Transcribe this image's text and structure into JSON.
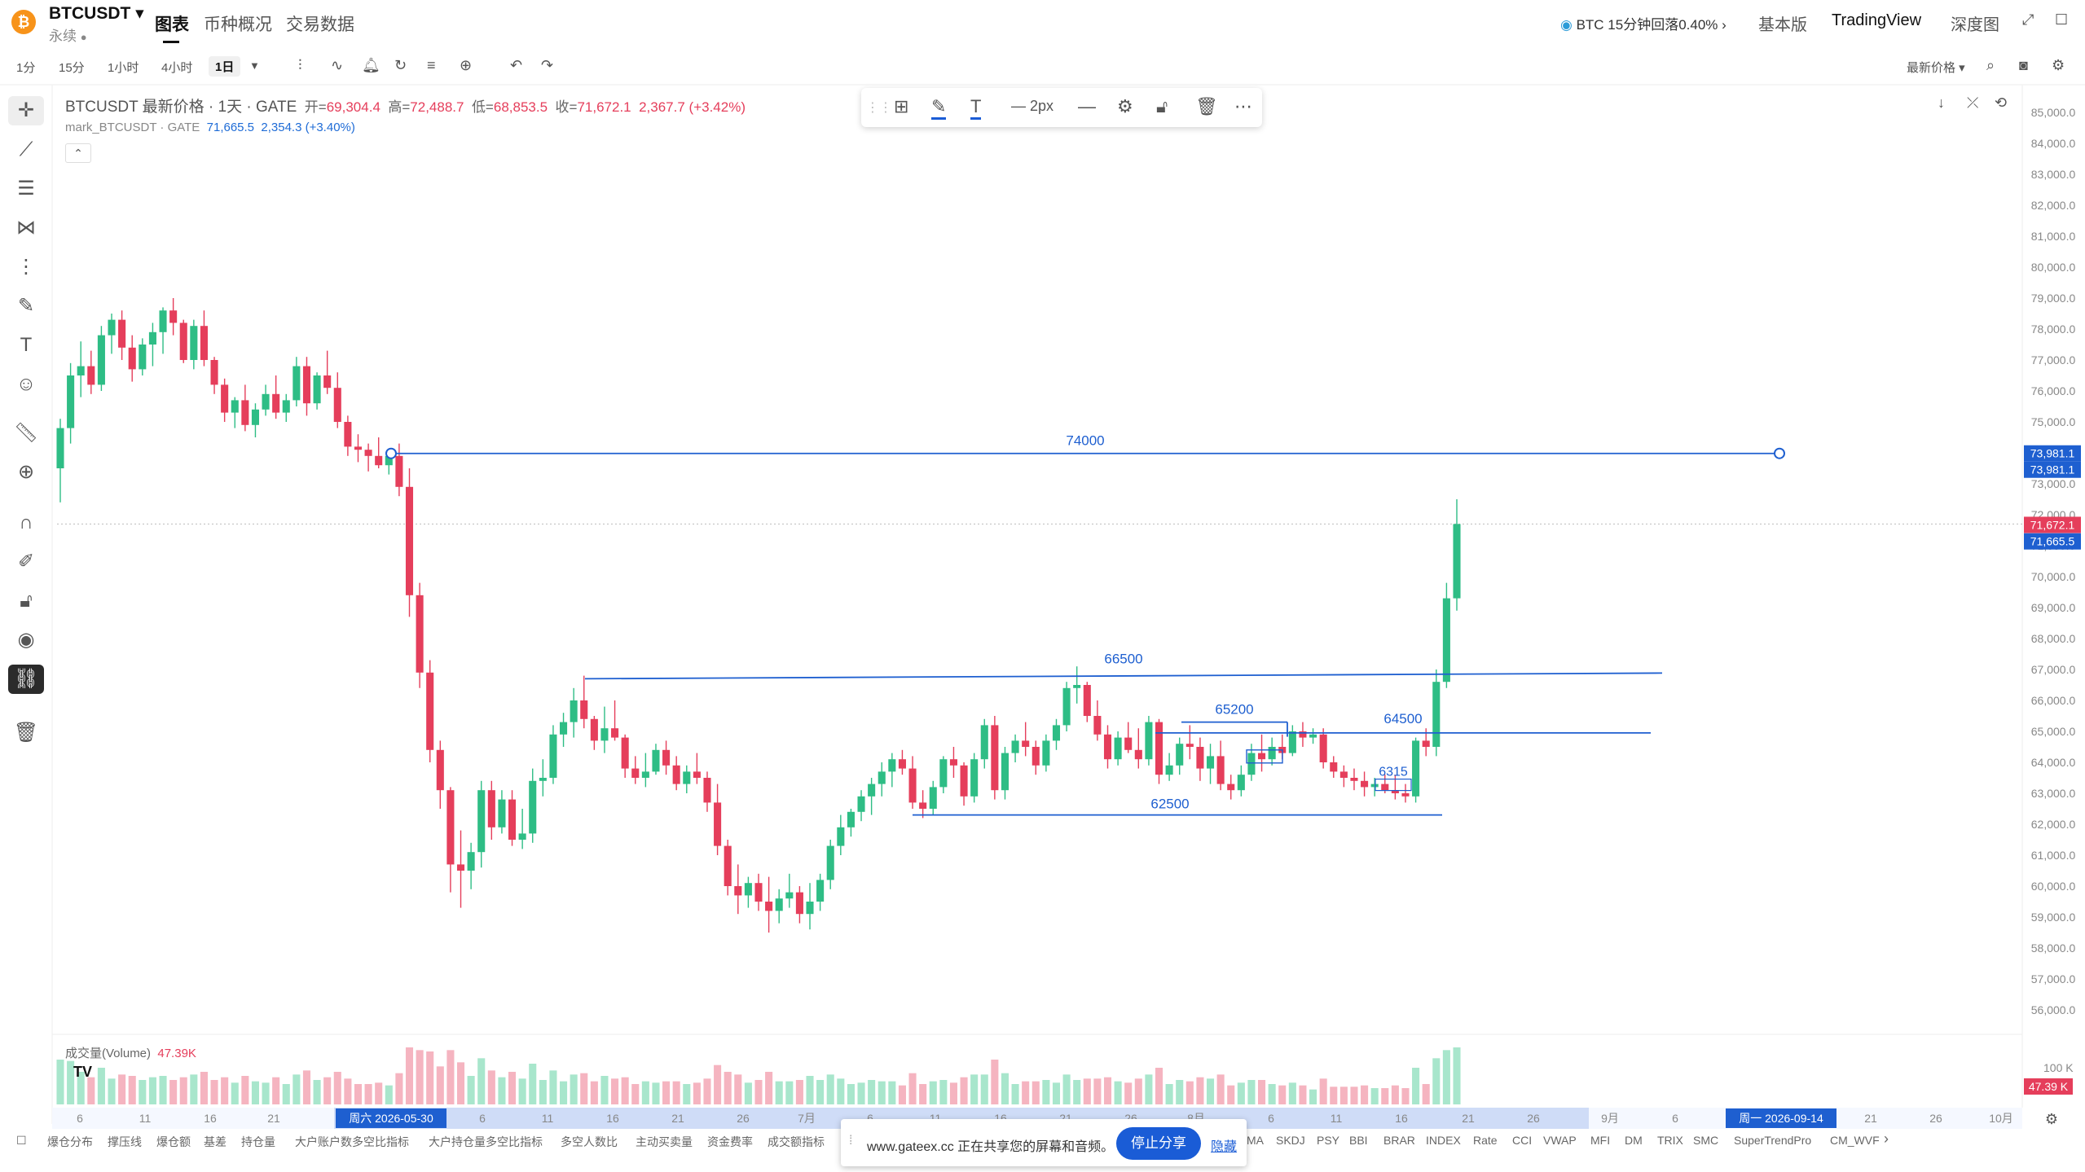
{
  "header": {
    "symbol": "BTCUSDT",
    "symbol_sub": "永续",
    "tabs": [
      "图表",
      "币种概况",
      "交易数据"
    ],
    "alert": "BTC 15分钟回落0.40%",
    "views": [
      "基本版",
      "TradingView",
      "深度图"
    ]
  },
  "toolbar": {
    "timeframes": [
      "1分",
      "15分",
      "1小时",
      "4小时",
      "1日"
    ],
    "selected_timeframe": "1日",
    "price_type": "最新价格"
  },
  "legend": {
    "title": "BTCUSDT 最新价格 · 1天 · GATE",
    "open_label": "开=",
    "open": "69,304.4",
    "high_label": "高=",
    "high": "72,488.7",
    "low_label": "低=",
    "low": "68,853.5",
    "close_label": "收=",
    "close": "71,672.1",
    "change": "2,367.7 (+3.42%)",
    "mark_title": "mark_BTCUSDT · GATE",
    "mark_value": "71,665.5",
    "mark_change": "2,354.3 (+3.40%)"
  },
  "drawing_toolbar": {
    "width_label": "2px"
  },
  "chart_data": {
    "type": "candlestick",
    "price_range": [
      56000,
      85000
    ],
    "price_ticks": [
      "85,000.0",
      "84,000.0",
      "83,000.0",
      "82,000.0",
      "81,000.0",
      "80,000.0",
      "79,000.0",
      "78,000.0",
      "77,000.0",
      "76,000.0",
      "75,000.0",
      "74,000.0",
      "73,000.0",
      "72,000.0",
      "71,000.0",
      "70,000.0",
      "69,000.0",
      "68,000.0",
      "67,000.0",
      "66,000.0",
      "65,000.0",
      "64,000.0",
      "63,000.0",
      "62,000.0",
      "61,000.0",
      "60,000.0",
      "59,000.0",
      "58,000.0",
      "57,000.0",
      "56,000.0"
    ],
    "price_tags": [
      {
        "text": "73,981.1",
        "price": 73981.1,
        "color": "#1e5fd0"
      },
      {
        "text": "73,981.1",
        "price": 73981.1,
        "color": "#1e5fd0"
      },
      {
        "text": "71,672.1",
        "price": 71672.1,
        "color": "#e53e5b"
      },
      {
        "text": "71,665.5",
        "price": 71665.5,
        "color": "#1e5fd0"
      }
    ],
    "horizontal_levels": [
      {
        "label": "74000",
        "price": 73981.1
      },
      {
        "label": "66500",
        "price": 66700
      },
      {
        "label": "65200",
        "price": 65300
      },
      {
        "label": "64500",
        "price": 64950
      },
      {
        "label": "62500",
        "price": 62300
      },
      {
        "label": "6315",
        "price": 63300
      }
    ],
    "volume_label": "成交量(Volume)",
    "volume_value": "47.39K",
    "volume_ticks": [
      "100 K"
    ],
    "volume_tag": "47.39 K",
    "x_ticks": [
      "6",
      "11",
      "16",
      "21",
      "周六 2026-05-30",
      "6",
      "11",
      "16",
      "21",
      "26",
      "7月",
      "6",
      "11",
      "16",
      "21",
      "26",
      "8月",
      "6",
      "11",
      "16",
      "21",
      "26",
      "9月",
      "6",
      "周一 2026-09-14",
      "21",
      "26",
      "10月"
    ],
    "candles": [
      [
        73500,
        75100,
        72400,
        74800
      ],
      [
        74800,
        76900,
        74300,
        76500
      ],
      [
        76500,
        77600,
        75800,
        76800
      ],
      [
        76800,
        77300,
        75900,
        76200
      ],
      [
        76200,
        78100,
        76000,
        77800
      ],
      [
        77800,
        78500,
        77200,
        78300
      ],
      [
        78300,
        78600,
        77000,
        77400
      ],
      [
        77400,
        77800,
        76300,
        76700
      ],
      [
        76700,
        77700,
        76500,
        77500
      ],
      [
        77500,
        78200,
        76800,
        77900
      ],
      [
        77900,
        78700,
        77200,
        78600
      ],
      [
        78600,
        79000,
        77800,
        78200
      ],
      [
        78200,
        78300,
        76900,
        77000
      ],
      [
        77000,
        78300,
        76700,
        78100
      ],
      [
        78100,
        78600,
        76800,
        77000
      ],
      [
        77000,
        77100,
        75900,
        76200
      ],
      [
        76200,
        76400,
        75000,
        75300
      ],
      [
        75300,
        75800,
        74800,
        75700
      ],
      [
        75700,
        76200,
        74700,
        74900
      ],
      [
        74900,
        75600,
        74500,
        75400
      ],
      [
        75400,
        76200,
        75200,
        75900
      ],
      [
        75900,
        76500,
        75100,
        75300
      ],
      [
        75300,
        75900,
        75000,
        75700
      ],
      [
        75700,
        77100,
        75500,
        76800
      ],
      [
        76800,
        77100,
        75200,
        75600
      ],
      [
        75600,
        76600,
        75400,
        76500
      ],
      [
        76500,
        77300,
        75900,
        76100
      ],
      [
        76100,
        76600,
        74800,
        75000
      ],
      [
        75000,
        75200,
        73900,
        74200
      ],
      [
        74200,
        74600,
        73700,
        74100
      ],
      [
        74100,
        74300,
        73400,
        73900
      ],
      [
        73900,
        74500,
        73500,
        73600
      ],
      [
        73600,
        74100,
        73300,
        73900
      ],
      [
        73900,
        74300,
        72600,
        72900
      ],
      [
        72900,
        73500,
        68700,
        69400
      ],
      [
        69400,
        69800,
        66400,
        66900
      ],
      [
        66900,
        67300,
        64000,
        64400
      ],
      [
        64400,
        64700,
        62500,
        63100
      ],
      [
        63100,
        63200,
        59800,
        60700
      ],
      [
        60700,
        61800,
        59300,
        60500
      ],
      [
        60500,
        61400,
        59900,
        61100
      ],
      [
        61100,
        63400,
        60600,
        63100
      ],
      [
        63100,
        63400,
        61500,
        61900
      ],
      [
        61900,
        63100,
        61700,
        62800
      ],
      [
        62800,
        63100,
        61300,
        61500
      ],
      [
        61500,
        62500,
        61200,
        61700
      ],
      [
        61700,
        63800,
        61400,
        63400
      ],
      [
        63400,
        64100,
        62900,
        63500
      ],
      [
        63500,
        65200,
        63300,
        64900
      ],
      [
        64900,
        65600,
        64500,
        65300
      ],
      [
        65300,
        66400,
        64800,
        66000
      ],
      [
        66000,
        66800,
        65100,
        65400
      ],
      [
        65400,
        65500,
        64400,
        64700
      ],
      [
        64700,
        65800,
        64300,
        65100
      ],
      [
        65100,
        66000,
        64700,
        64800
      ],
      [
        64800,
        64900,
        63500,
        63800
      ],
      [
        63800,
        64200,
        63300,
        63500
      ],
      [
        63500,
        64300,
        63200,
        63700
      ],
      [
        63700,
        64600,
        63600,
        64400
      ],
      [
        64400,
        64700,
        63600,
        63900
      ],
      [
        63900,
        64200,
        63100,
        63300
      ],
      [
        63300,
        63900,
        63000,
        63700
      ],
      [
        63700,
        64300,
        63300,
        63500
      ],
      [
        63500,
        63700,
        62400,
        62700
      ],
      [
        62700,
        63300,
        61000,
        61300
      ],
      [
        61300,
        61500,
        59700,
        60000
      ],
      [
        60000,
        60700,
        59100,
        59700
      ],
      [
        59700,
        60300,
        59300,
        60100
      ],
      [
        60100,
        60400,
        59200,
        59500
      ],
      [
        59500,
        60300,
        58500,
        59200
      ],
      [
        59200,
        59900,
        58800,
        59600
      ],
      [
        59600,
        60400,
        59300,
        59800
      ],
      [
        59800,
        60000,
        58800,
        59100
      ],
      [
        59100,
        60100,
        58600,
        59500
      ],
      [
        59500,
        60400,
        59200,
        60200
      ],
      [
        60200,
        61500,
        59900,
        61300
      ],
      [
        61300,
        62300,
        61000,
        61900
      ],
      [
        61900,
        62500,
        61600,
        62400
      ],
      [
        62400,
        63100,
        62100,
        62900
      ],
      [
        62900,
        63500,
        62300,
        63300
      ],
      [
        63300,
        64000,
        62900,
        63700
      ],
      [
        63700,
        64300,
        63200,
        64100
      ],
      [
        64100,
        64400,
        63600,
        63800
      ],
      [
        63800,
        64200,
        62500,
        62700
      ],
      [
        62700,
        63100,
        62200,
        62500
      ],
      [
        62500,
        63400,
        62300,
        63200
      ],
      [
        63200,
        64200,
        63000,
        64100
      ],
      [
        64100,
        64500,
        63500,
        63900
      ],
      [
        63900,
        64000,
        62600,
        62900
      ],
      [
        62900,
        64300,
        62700,
        64100
      ],
      [
        64100,
        65400,
        63800,
        65200
      ],
      [
        65200,
        65500,
        62800,
        63100
      ],
      [
        63100,
        64500,
        62800,
        64300
      ],
      [
        64300,
        64900,
        64000,
        64700
      ],
      [
        64700,
        65300,
        64200,
        64500
      ],
      [
        64500,
        64700,
        63600,
        63900
      ],
      [
        63900,
        64900,
        63700,
        64700
      ],
      [
        64700,
        65400,
        64400,
        65200
      ],
      [
        65200,
        66600,
        65000,
        66400
      ],
      [
        66400,
        67100,
        65900,
        66500
      ],
      [
        66500,
        66600,
        65300,
        65500
      ],
      [
        65500,
        66000,
        64700,
        64900
      ],
      [
        64900,
        65200,
        63800,
        64100
      ],
      [
        64100,
        65000,
        63900,
        64800
      ],
      [
        64800,
        65300,
        64300,
        64400
      ],
      [
        64400,
        65100,
        63800,
        64100
      ],
      [
        64100,
        65500,
        63900,
        65300
      ],
      [
        65300,
        65400,
        63300,
        63600
      ],
      [
        63600,
        64300,
        63400,
        63900
      ],
      [
        63900,
        64800,
        63600,
        64600
      ],
      [
        64600,
        65200,
        64100,
        64500
      ],
      [
        64500,
        64800,
        63400,
        63800
      ],
      [
        63800,
        64600,
        63300,
        64200
      ],
      [
        64200,
        64700,
        63100,
        63300
      ],
      [
        63300,
        63600,
        62800,
        63100
      ],
      [
        63100,
        63900,
        62900,
        63600
      ],
      [
        63600,
        64600,
        63400,
        64300
      ],
      [
        64300,
        64900,
        63700,
        64100
      ],
      [
        64100,
        64800,
        63900,
        64500
      ],
      [
        64500,
        64900,
        64100,
        64300
      ],
      [
        64300,
        65200,
        64200,
        65000
      ],
      [
        65000,
        65300,
        64500,
        64800
      ],
      [
        64800,
        65100,
        64600,
        64900
      ],
      [
        64900,
        65100,
        63800,
        64000
      ],
      [
        64000,
        64200,
        63500,
        63700
      ],
      [
        63700,
        63900,
        63200,
        63500
      ],
      [
        63500,
        63800,
        63100,
        63400
      ],
      [
        63400,
        63700,
        62900,
        63200
      ],
      [
        63200,
        63500,
        62900,
        63300
      ],
      [
        63300,
        63600,
        63000,
        63100
      ],
      [
        63100,
        63600,
        62800,
        63000
      ],
      [
        63000,
        63300,
        62700,
        62900
      ],
      [
        62900,
        64800,
        62700,
        64700
      ],
      [
        64700,
        65100,
        64200,
        64500
      ],
      [
        64500,
        67000,
        64200,
        66600
      ],
      [
        66600,
        69800,
        66400,
        69300
      ],
      [
        69300,
        72500,
        68900,
        71700
      ]
    ]
  },
  "bottom_indicators": [
    "爆仓分布",
    "撑压线",
    "爆仓额",
    "基差",
    "持仓量",
    "大户账户数多空比指标",
    "大户持仓量多空比指标",
    "多空人数比",
    "主动买卖量",
    "资金费率",
    "成交额指标",
    "MA",
    "SKDJ",
    "PSY",
    "BBI",
    "BRAR",
    "INDEX",
    "Rate",
    "CCI",
    "VWAP",
    "MFI",
    "DM",
    "TRIX",
    "SMC",
    "SuperTrendPro",
    "CM_WVF"
  ],
  "share_bar": {
    "text": "www.gateex.cc 正在共享您的屏幕和音频。",
    "stop": "停止分享",
    "hide": "隐藏"
  }
}
